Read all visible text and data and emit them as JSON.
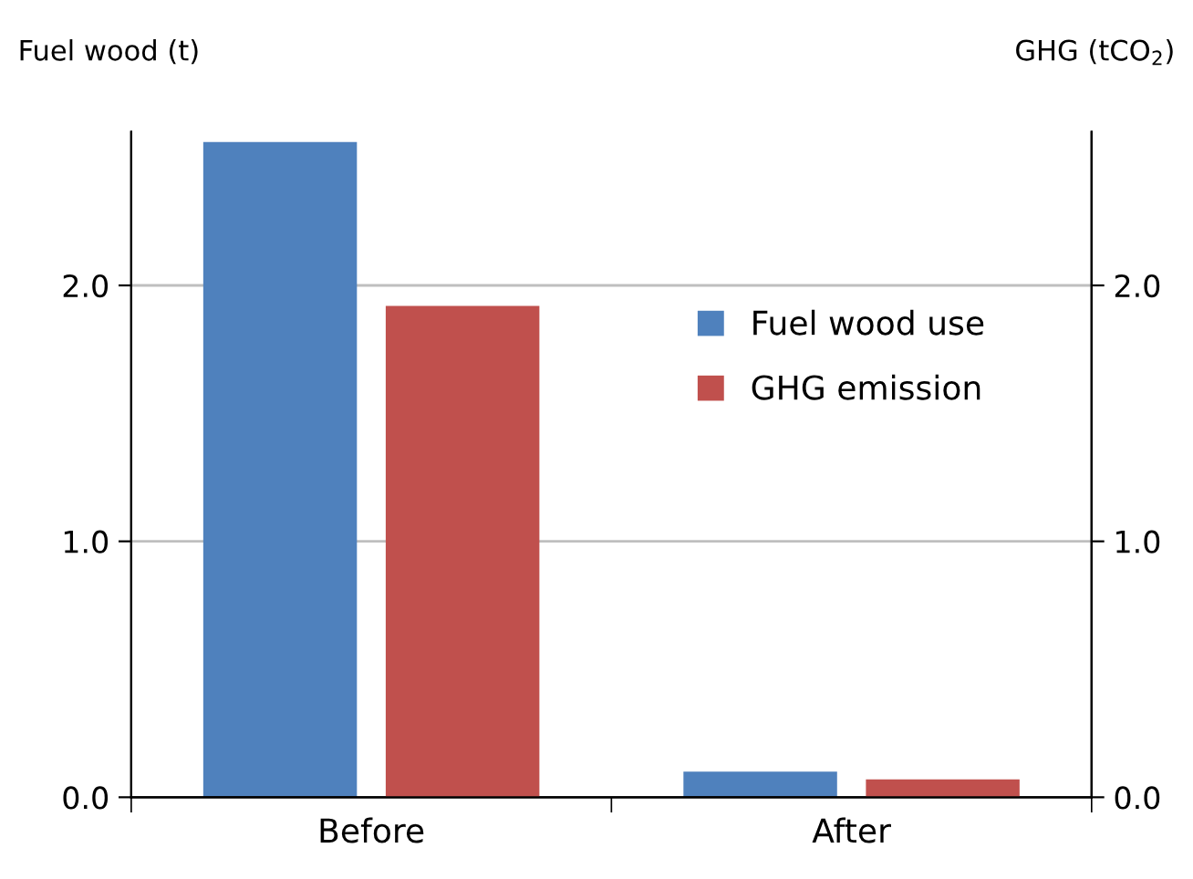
{
  "chart_data": {
    "type": "bar",
    "categories": [
      "Before",
      "After"
    ],
    "series": [
      {
        "name": "Fuel wood use",
        "color": "#4f81bd",
        "values": [
          2.56,
          0.1
        ]
      },
      {
        "name": "GHG emission",
        "color": "#c0504d",
        "values": [
          1.92,
          0.07
        ],
        "axis": "y2"
      }
    ],
    "ylabel": "Fuel wood (t)",
    "y2label": "GHG (tCO$_{2}$)",
    "ylim": [
      0,
      2.6
    ],
    "yticks": [
      {
        "value": 0,
        "label": "0.0"
      },
      {
        "value": 1,
        "label": "1.0"
      },
      {
        "value": 2,
        "label": "2.0"
      }
    ],
    "y2lim": [
      0,
      2.6
    ],
    "y2ticks": [
      {
        "value": 0,
        "label": "0.0"
      },
      {
        "value": 1,
        "label": "1.0"
      },
      {
        "value": 2,
        "label": "2.0"
      }
    ],
    "grid": "y",
    "legend": "right"
  }
}
